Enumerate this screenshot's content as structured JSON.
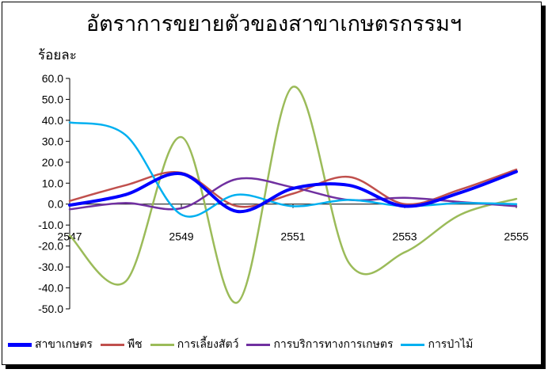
{
  "chart_data": {
    "type": "line",
    "title": "อัตราการขยายตัวของสาขาเกษตรกรรมฯ",
    "ylabel": "ร้อยละ",
    "xlabel": "",
    "ylim": [
      -50,
      60
    ],
    "xlim": [
      2547,
      2555
    ],
    "yticks": [
      "60.0",
      "50.0",
      "40.0",
      "30.0",
      "20.0",
      "10.0",
      "0.0",
      "-10.0",
      "-20.0",
      "-30.0",
      "-40.0",
      "-50.0"
    ],
    "xticks": [
      "2547",
      "2549",
      "2551",
      "2553",
      "2555"
    ],
    "x": [
      2547,
      2548,
      2549,
      2550,
      2551,
      2552,
      2553,
      2554,
      2555
    ],
    "series": [
      {
        "name": "สาขาเกษตร",
        "color": "#0000ff",
        "width": 4,
        "values": [
          -0.5,
          4.5,
          14.5,
          -3.5,
          7.5,
          9.0,
          -1.0,
          5.5,
          15.5
        ]
      },
      {
        "name": "พืช",
        "color": "#c0504d",
        "width": 2.5,
        "values": [
          1.5,
          9.0,
          15.0,
          -1.0,
          5.0,
          13.0,
          0.0,
          7.0,
          16.5
        ]
      },
      {
        "name": "การเลี้ยงสัตว์",
        "color": "#9bbb59",
        "width": 2.5,
        "values": [
          -15.0,
          -37.0,
          32.0,
          -47.0,
          56.0,
          -28.0,
          -23.0,
          -5.0,
          2.5
        ]
      },
      {
        "name": "การบริการทางการเกษตร",
        "color": "#7030a0",
        "width": 2.5,
        "values": [
          -2.5,
          0.5,
          -2.0,
          12.0,
          8.0,
          2.0,
          3.0,
          1.0,
          -1.0
        ]
      },
      {
        "name": "การป่าไม้",
        "color": "#00b0f0",
        "width": 2.5,
        "values": [
          39.0,
          33.0,
          -5.0,
          4.5,
          -1.0,
          2.0,
          -1.0,
          0.5,
          0.0
        ]
      }
    ],
    "legend_position": "bottom",
    "grid": false
  }
}
